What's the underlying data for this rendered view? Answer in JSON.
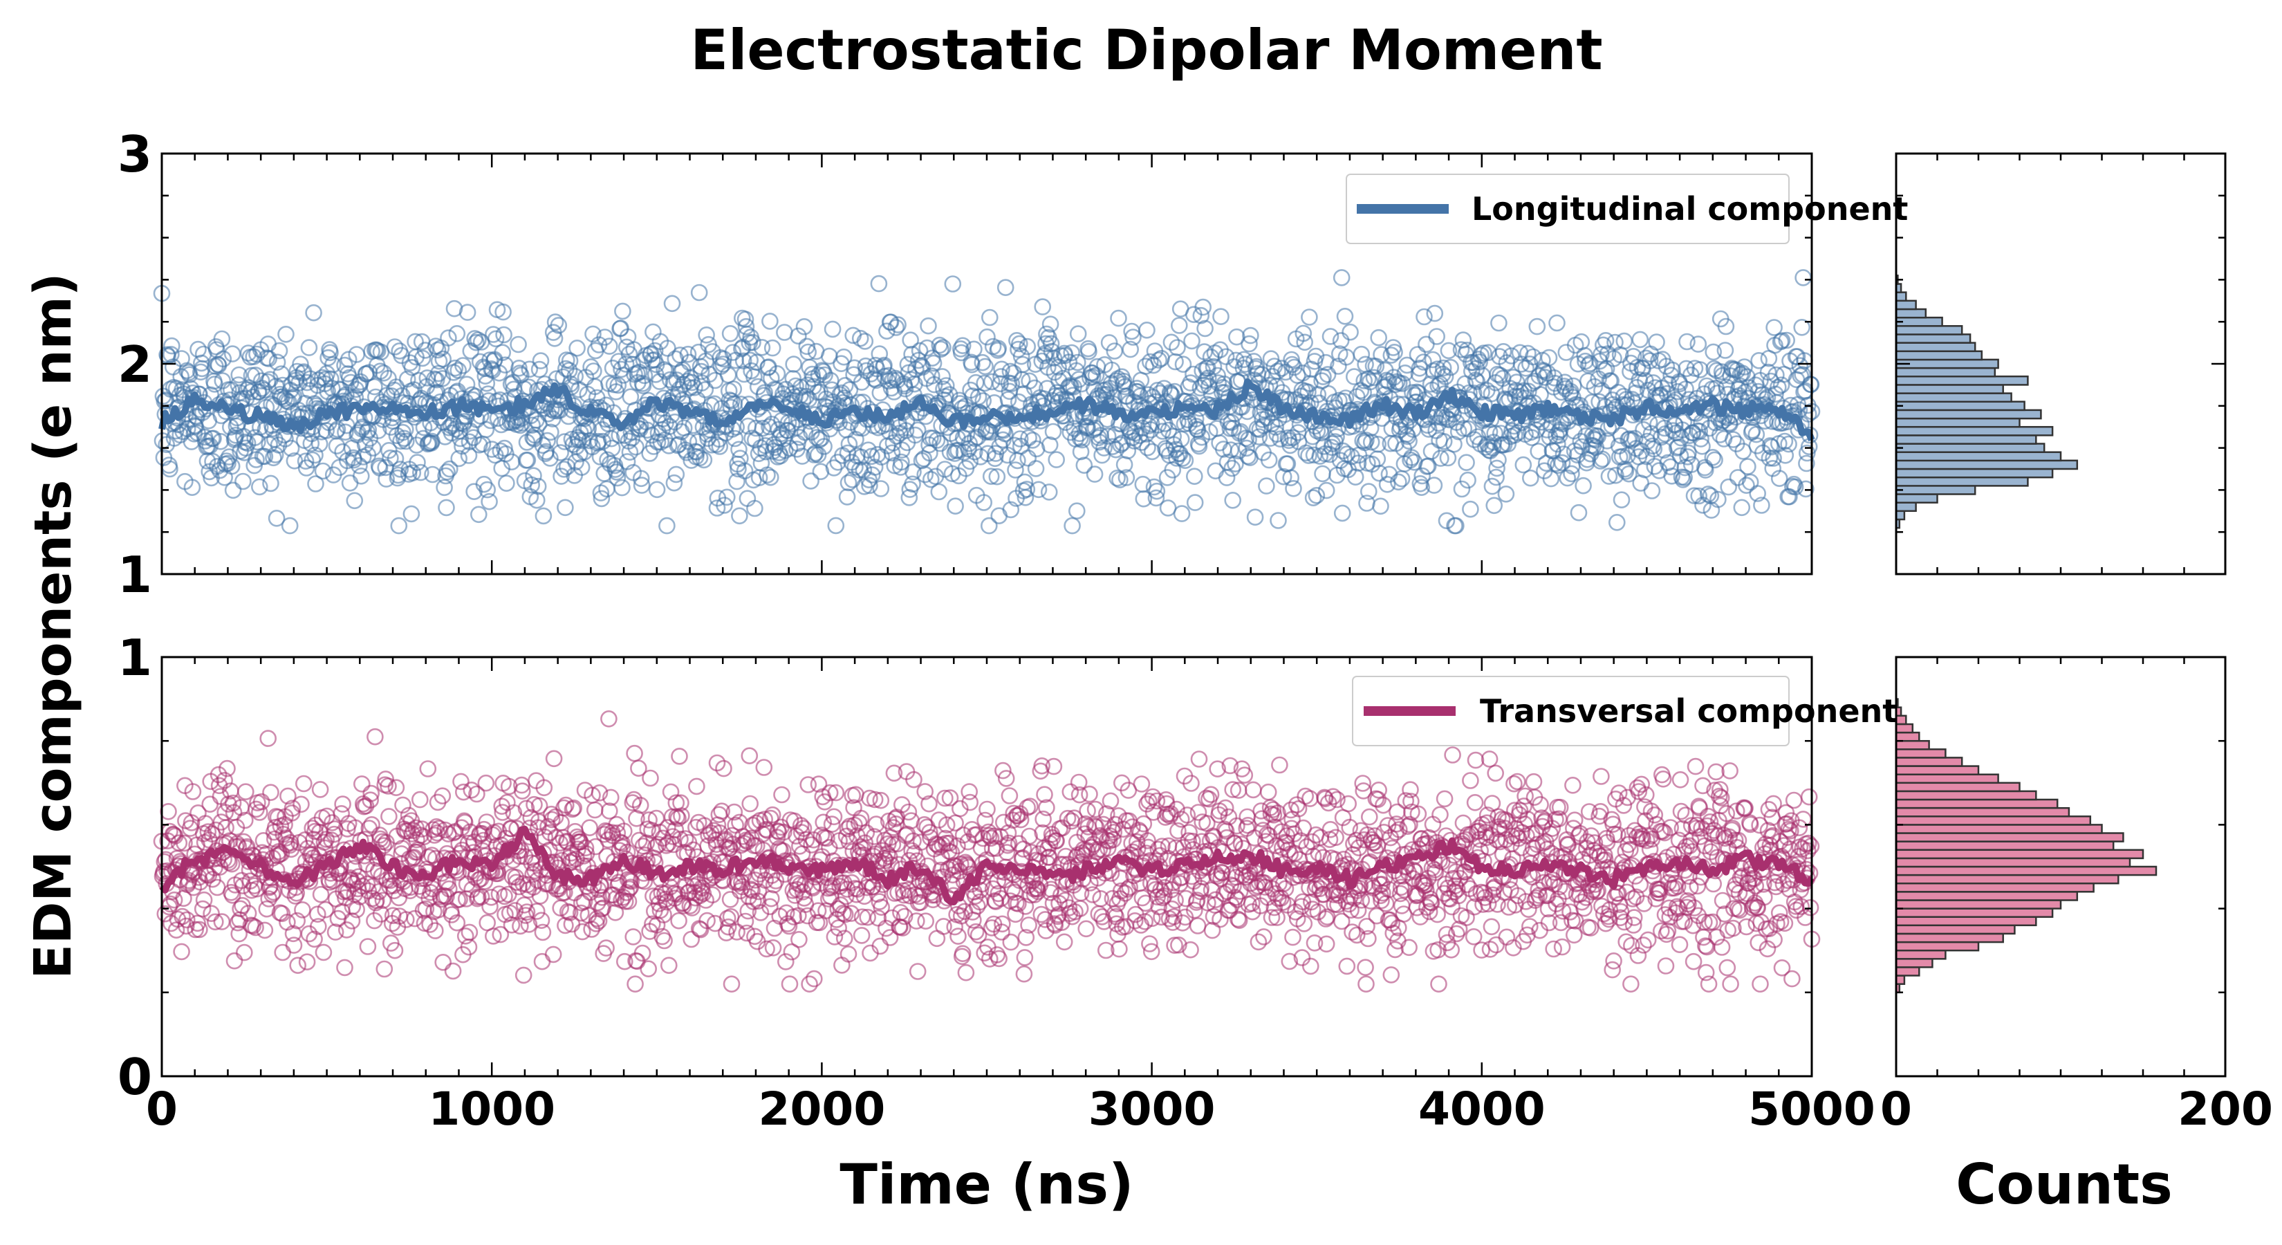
{
  "title": "Electrostatic Dipolar Moment",
  "colors": {
    "longitudinal": "#4474a8",
    "transversal": "#a8306e",
    "longitudinal_hist": "#9ab4d0",
    "transversal_hist": "#e38aa9"
  },
  "chart_data": [
    {
      "type": "scatter",
      "panel": "top-time-series",
      "xlabel": "Time (ns)",
      "ylabel": "EDM components (e nm)",
      "xlim": [
        0,
        5000
      ],
      "ylim": [
        1,
        3
      ],
      "x_ticks": [
        0,
        1000,
        2000,
        3000,
        4000,
        5000
      ],
      "y_ticks": [
        1,
        2,
        3
      ],
      "grid": false,
      "legend": "top-right",
      "series": [
        {
          "name": "Longitudinal component",
          "style": "open-circle markers with running-mean line",
          "x_start": 0,
          "x_end": 5000,
          "n_points": 2500,
          "mean": 1.78,
          "std": 0.2,
          "min": 1.23,
          "max": 2.41,
          "running_mean": {
            "x": [
              0,
              100,
              200,
              300,
              400,
              500,
              600,
              700,
              800,
              900,
              1000,
              1100,
              1200,
              1300,
              1400,
              1500,
              1600,
              1700,
              1800,
              1900,
              2000,
              2100,
              2200,
              2300,
              2400,
              2500,
              2600,
              2700,
              2800,
              2900,
              3000,
              3100,
              3200,
              3300,
              3400,
              3500,
              3600,
              3700,
              3800,
              3900,
              4000,
              4100,
              4200,
              4300,
              4400,
              4500,
              4600,
              4700,
              4800,
              4900,
              5000
            ],
            "y": [
              1.72,
              1.82,
              1.78,
              1.75,
              1.7,
              1.76,
              1.79,
              1.78,
              1.76,
              1.8,
              1.78,
              1.81,
              1.88,
              1.76,
              1.72,
              1.82,
              1.76,
              1.74,
              1.79,
              1.8,
              1.73,
              1.77,
              1.75,
              1.82,
              1.72,
              1.75,
              1.74,
              1.78,
              1.81,
              1.76,
              1.77,
              1.79,
              1.78,
              1.9,
              1.78,
              1.76,
              1.74,
              1.81,
              1.76,
              1.85,
              1.77,
              1.75,
              1.79,
              1.74,
              1.74,
              1.79,
              1.78,
              1.8,
              1.78,
              1.77,
              1.66
            ]
          }
        }
      ]
    },
    {
      "type": "scatter",
      "panel": "bottom-time-series",
      "xlabel": "Time (ns)",
      "ylabel": "EDM components (e nm)",
      "xlim": [
        0,
        5000
      ],
      "ylim": [
        0,
        1
      ],
      "x_ticks": [
        0,
        1000,
        2000,
        3000,
        4000,
        5000
      ],
      "y_ticks": [
        0,
        1
      ],
      "grid": false,
      "legend": "top-right",
      "series": [
        {
          "name": "Transversal component",
          "style": "open-circle markers with running-mean line",
          "x_start": 0,
          "x_end": 5000,
          "n_points": 2500,
          "mean": 0.5,
          "std": 0.1,
          "min": 0.22,
          "max": 0.88,
          "running_mean": {
            "x": [
              0,
              100,
              200,
              300,
              400,
              500,
              600,
              700,
              800,
              900,
              1000,
              1100,
              1200,
              1300,
              1400,
              1500,
              1600,
              1700,
              1800,
              1900,
              2000,
              2100,
              2200,
              2300,
              2400,
              2500,
              2600,
              2700,
              2800,
              2900,
              3000,
              3100,
              3200,
              3300,
              3400,
              3500,
              3600,
              3700,
              3800,
              3900,
              4000,
              4100,
              4200,
              4300,
              4400,
              4500,
              4600,
              4700,
              4800,
              4900,
              5000
            ],
            "y": [
              0.45,
              0.52,
              0.53,
              0.5,
              0.47,
              0.5,
              0.55,
              0.5,
              0.48,
              0.52,
              0.5,
              0.58,
              0.48,
              0.47,
              0.52,
              0.48,
              0.5,
              0.49,
              0.52,
              0.5,
              0.49,
              0.51,
              0.47,
              0.5,
              0.42,
              0.5,
              0.5,
              0.47,
              0.49,
              0.52,
              0.49,
              0.5,
              0.52,
              0.53,
              0.49,
              0.5,
              0.47,
              0.5,
              0.52,
              0.55,
              0.5,
              0.49,
              0.5,
              0.49,
              0.47,
              0.5,
              0.51,
              0.49,
              0.52,
              0.5,
              0.47
            ]
          }
        }
      ]
    },
    {
      "type": "bar",
      "panel": "top-histogram",
      "orientation": "horizontal",
      "xlabel": "Counts",
      "xlim": [
        0,
        200
      ],
      "ylim": [
        1,
        3
      ],
      "x_ticks": [
        0,
        200
      ],
      "bin_edges": [
        1.22,
        1.26,
        1.3,
        1.34,
        1.38,
        1.42,
        1.46,
        1.5,
        1.54,
        1.58,
        1.62,
        1.66,
        1.7,
        1.74,
        1.78,
        1.82,
        1.86,
        1.9,
        1.94,
        1.98,
        2.02,
        2.06,
        2.1,
        2.14,
        2.18,
        2.22,
        2.26,
        2.3,
        2.34,
        2.38,
        2.42
      ],
      "counts": [
        2,
        5,
        12,
        25,
        48,
        80,
        95,
        110,
        100,
        90,
        85,
        95,
        75,
        88,
        78,
        70,
        65,
        80,
        60,
        62,
        52,
        48,
        45,
        40,
        28,
        18,
        12,
        6,
        3,
        1
      ]
    },
    {
      "type": "bar",
      "panel": "bottom-histogram",
      "orientation": "horizontal",
      "xlabel": "Counts",
      "xlim": [
        0,
        200
      ],
      "ylim": [
        0,
        1
      ],
      "x_ticks": [
        0,
        200
      ],
      "bin_edges": [
        0.2,
        0.22,
        0.24,
        0.26,
        0.28,
        0.3,
        0.32,
        0.34,
        0.36,
        0.38,
        0.4,
        0.42,
        0.44,
        0.46,
        0.48,
        0.5,
        0.52,
        0.54,
        0.56,
        0.58,
        0.6,
        0.62,
        0.64,
        0.66,
        0.68,
        0.7,
        0.72,
        0.74,
        0.76,
        0.78,
        0.8,
        0.82,
        0.84,
        0.86,
        0.88,
        0.9
      ],
      "counts": [
        2,
        5,
        14,
        22,
        30,
        50,
        65,
        72,
        85,
        95,
        100,
        110,
        120,
        135,
        158,
        142,
        150,
        132,
        138,
        125,
        118,
        105,
        98,
        85,
        75,
        62,
        50,
        40,
        30,
        20,
        14,
        10,
        6,
        3,
        1
      ]
    }
  ]
}
